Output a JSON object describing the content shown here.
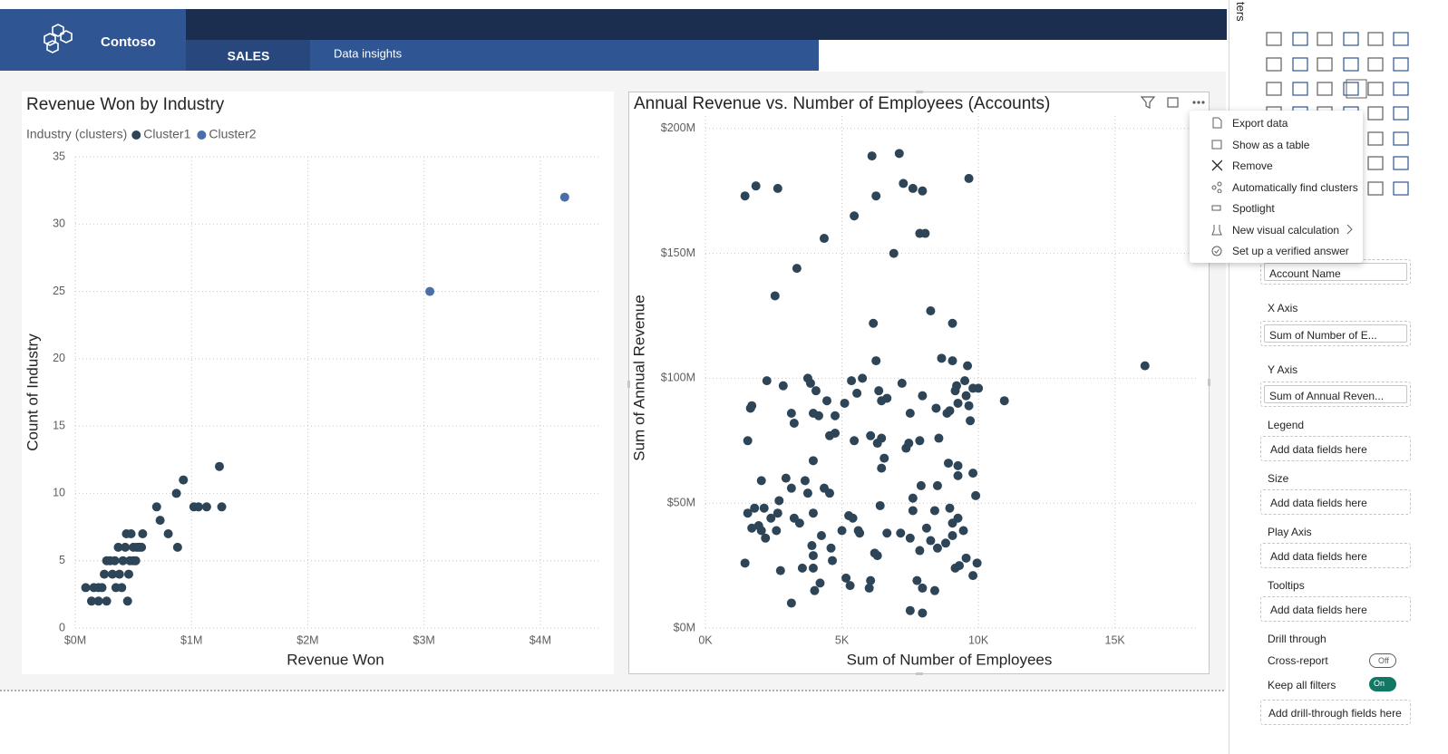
{
  "header": {
    "brand": "Contoso",
    "tabs": [
      "SALES",
      "Data insights"
    ]
  },
  "chart_data": [
    {
      "type": "scatter",
      "title": "Revenue Won by Industry",
      "legend_title": "Industry (clusters)",
      "xlabel": "Revenue Won",
      "ylabel": "Count of Industry",
      "grid": true,
      "xlim": [
        0,
        4.5
      ],
      "xticks": [
        {
          "value": 0,
          "label": "$0M"
        },
        {
          "value": 1,
          "label": "$1M"
        },
        {
          "value": 2,
          "label": "$2M"
        },
        {
          "value": 3,
          "label": "$3M"
        },
        {
          "value": 4,
          "label": "$4M"
        }
      ],
      "ylim": [
        0,
        35
      ],
      "yticks": [
        0,
        5,
        10,
        15,
        20,
        25,
        30,
        35
      ],
      "series": [
        {
          "name": "Cluster1",
          "color": "#2e4457",
          "x": [
            0.09,
            0.16,
            0.2,
            0.14,
            0.2,
            0.27,
            0.23,
            0.25,
            0.27,
            0.3,
            0.32,
            0.35,
            0.34,
            0.37,
            0.38,
            0.4,
            0.41,
            0.43,
            0.44,
            0.46,
            0.47,
            0.48,
            0.5,
            0.5,
            0.52,
            0.53,
            0.55,
            0.57,
            0.58,
            0.45,
            0.7,
            0.73,
            0.8,
            0.88,
            0.87,
            0.93,
            1.02,
            1.06,
            1.13,
            1.24,
            1.26
          ],
          "values": [
            3,
            3,
            3,
            2,
            2,
            2,
            3,
            4,
            5,
            5,
            4,
            3,
            5,
            6,
            4,
            3,
            5,
            6,
            7,
            4,
            5,
            7,
            6,
            5,
            5,
            6,
            6,
            6,
            7,
            2,
            9,
            8,
            7,
            6,
            10,
            11,
            9,
            9,
            9,
            12,
            9
          ]
        },
        {
          "name": "Cluster2",
          "color": "#4a6fa8",
          "x": [
            3.05,
            4.21
          ],
          "values": [
            25,
            32
          ]
        }
      ]
    },
    {
      "type": "scatter",
      "title": "Annual Revenue vs. Number of Employees (Accounts)",
      "xlabel": "Sum of Number of Employees",
      "ylabel": "Sum of Annual Revenue",
      "grid": true,
      "color": "#2e4457",
      "xlim": [
        0,
        18000
      ],
      "xticks": [
        {
          "value": 0,
          "label": "0K"
        },
        {
          "value": 5000,
          "label": "5K"
        },
        {
          "value": 10000,
          "label": "10K"
        },
        {
          "value": 15000,
          "label": "15K"
        }
      ],
      "ylim": [
        0,
        205
      ],
      "yticks": [
        {
          "value": 0,
          "label": "$0M"
        },
        {
          "value": 50,
          "label": "$50M"
        },
        {
          "value": 100,
          "label": "$100M"
        },
        {
          "value": 150,
          "label": "$150M"
        },
        {
          "value": 200,
          "label": "$200M"
        }
      ],
      "x": [
        1450,
        1850,
        2650,
        6100,
        7100,
        6250,
        7250,
        7600,
        7950,
        9650,
        5450,
        4350,
        3350,
        2550,
        6900,
        7850,
        8050,
        8250,
        9050,
        6150,
        6250,
        3750,
        5750,
        5350,
        9050,
        9600,
        9800,
        10000,
        9500,
        9200,
        10950,
        16100,
        2250,
        2850,
        3850,
        4050,
        4450,
        5100,
        5550,
        6350,
        6450,
        7200,
        7950,
        8450,
        8950,
        9150,
        9250,
        9650,
        9550,
        1700,
        1650,
        1550,
        3150,
        3250,
        3950,
        4150,
        4750,
        4550,
        4750,
        3950,
        5450,
        6050,
        6300,
        6450,
        6550,
        6450,
        6650,
        7500,
        7450,
        7850,
        7350,
        8550,
        8850,
        9700,
        8650,
        9800,
        8900,
        9250,
        9250,
        2050,
        2950,
        3150,
        3650,
        3750,
        2700,
        2650,
        2150,
        1800,
        1550,
        1700,
        1950,
        2050,
        2200,
        2600,
        2400,
        3250,
        3450,
        3950,
        4350,
        4550,
        5250,
        5400,
        5650,
        6400,
        7600,
        7900,
        8500,
        7600,
        8400,
        9050,
        9250,
        9450,
        9900,
        8950,
        9050,
        8800,
        8500,
        8250,
        8100,
        7850,
        9150,
        9300,
        9550,
        9950,
        9800,
        1450,
        2750,
        3550,
        3900,
        3950,
        4250,
        4600,
        4650,
        3950,
        4200,
        4000,
        3150,
        5150,
        5300,
        6050,
        6000,
        6200,
        6300,
        6650,
        7150,
        7500,
        7750,
        7950,
        8400,
        7500,
        7950,
        5600,
        5000
      ],
      "values": [
        173,
        177,
        176,
        189,
        190,
        173,
        178,
        176,
        175,
        180,
        165,
        156,
        144,
        133,
        150,
        158,
        158,
        127,
        122,
        122,
        107,
        100,
        100,
        99,
        107,
        105,
        96,
        96,
        99,
        97,
        91,
        105,
        99,
        97,
        98,
        95,
        91,
        90,
        94,
        95,
        91,
        98,
        93,
        88,
        87,
        95,
        90,
        89,
        93,
        89,
        88,
        75,
        86,
        82,
        86,
        85,
        85,
        77,
        78,
        67,
        75,
        77,
        74,
        76,
        68,
        64,
        92,
        86,
        74,
        75,
        72,
        76,
        86,
        83,
        108,
        62,
        66,
        65,
        61,
        59,
        60,
        56,
        59,
        54,
        51,
        46,
        48,
        48,
        46,
        40,
        41,
        39,
        36,
        39,
        44,
        44,
        42,
        46,
        56,
        54,
        45,
        44,
        38,
        49,
        52,
        57,
        57,
        47,
        47,
        42,
        44,
        39,
        53,
        48,
        37,
        34,
        32,
        35,
        40,
        31,
        24,
        25,
        28,
        26,
        21,
        26,
        23,
        24,
        33,
        29,
        37,
        32,
        27,
        24,
        18,
        15,
        10,
        20,
        17,
        19,
        16,
        30,
        29,
        38,
        38,
        36,
        19,
        16,
        15,
        7,
        6,
        39,
        39
      ]
    }
  ],
  "context_menu": {
    "items": [
      "Export data",
      "Show as a table",
      "Remove",
      "Automatically find clusters",
      "Spotlight",
      "New visual calculation",
      "Set up a verified answer"
    ]
  },
  "side_pane": {
    "tab_label": "ters",
    "fields": [
      {
        "value": "Account Name"
      },
      {
        "label": "X Axis",
        "value": "Sum of Number of E..."
      },
      {
        "label": "Y Axis",
        "value": "Sum of Annual Reven..."
      },
      {
        "label": "Legend",
        "placeholder": "Add data fields here"
      },
      {
        "label": "Size",
        "placeholder": "Add data fields here"
      },
      {
        "label": "Play Axis",
        "placeholder": "Add data fields here"
      },
      {
        "label": "Tooltips",
        "placeholder": "Add data fields here"
      }
    ],
    "drill_through": {
      "title": "Drill through",
      "cross_report": {
        "label": "Cross-report",
        "state": "Off"
      },
      "keep_all_filters": {
        "label": "Keep all filters",
        "state": "On"
      },
      "placeholder": "Add drill-through fields here"
    }
  }
}
